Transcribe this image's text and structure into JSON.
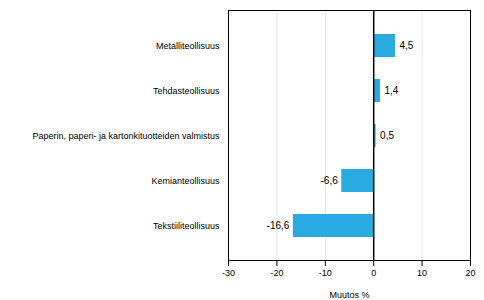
{
  "chart_data": {
    "type": "bar",
    "orientation": "horizontal",
    "categories": [
      "Tekstiiliteollisuus",
      "Kemianteollisuus",
      "Paperin, paperi- ja kartonkituotteiden valmistus",
      "Tehdasteollisuus",
      "Metalliteollisuus"
    ],
    "values": [
      -16.6,
      -6.6,
      0.5,
      1.4,
      4.5
    ],
    "value_labels": [
      "-16,6",
      "-6,6",
      "0,5",
      "1,4",
      "4,5"
    ],
    "data_labels": true,
    "color": "#29abe2",
    "xlim": [
      -30,
      20
    ],
    "xticks": [
      -30,
      -20,
      -10,
      0,
      10,
      20
    ],
    "xlabel": "Muutos %",
    "grid": true
  }
}
